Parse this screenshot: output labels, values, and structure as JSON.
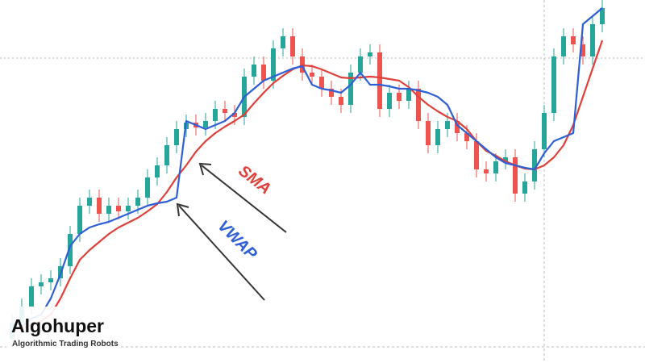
{
  "chart_data": {
    "type": "candlestick",
    "up_color": "#26a69a",
    "down_color": "#ef5350",
    "ylim": [
      0,
      450
    ],
    "open": [
      30,
      50,
      70,
      95,
      100,
      105,
      120,
      160,
      195,
      205,
      185,
      195,
      188,
      195,
      205,
      230,
      245,
      270,
      290,
      298,
      292,
      300,
      315,
      310,
      305,
      355,
      370,
      350,
      390,
      405,
      380,
      360,
      355,
      340,
      330,
      320,
      360,
      380,
      385,
      315,
      335,
      325,
      340,
      300,
      270,
      290,
      300,
      285,
      275,
      240,
      235,
      250,
      255,
      210,
      225,
      265,
      310,
      380,
      405,
      395,
      380,
      420
    ],
    "high": [
      60,
      80,
      105,
      110,
      115,
      130,
      170,
      205,
      215,
      215,
      205,
      205,
      205,
      215,
      240,
      255,
      280,
      300,
      308,
      308,
      310,
      325,
      325,
      320,
      365,
      380,
      380,
      400,
      415,
      415,
      390,
      370,
      365,
      350,
      340,
      370,
      390,
      395,
      395,
      345,
      345,
      350,
      350,
      310,
      300,
      310,
      310,
      295,
      285,
      250,
      260,
      265,
      265,
      235,
      275,
      320,
      390,
      415,
      415,
      405,
      430,
      450
    ],
    "low": [
      20,
      40,
      60,
      85,
      90,
      95,
      110,
      150,
      185,
      175,
      175,
      178,
      178,
      185,
      195,
      220,
      235,
      260,
      280,
      282,
      282,
      290,
      300,
      295,
      295,
      345,
      340,
      340,
      380,
      370,
      350,
      345,
      330,
      320,
      310,
      310,
      350,
      370,
      305,
      305,
      315,
      315,
      290,
      260,
      260,
      280,
      275,
      265,
      230,
      225,
      225,
      240,
      200,
      200,
      215,
      255,
      300,
      370,
      385,
      370,
      370,
      410
    ],
    "close": [
      50,
      70,
      95,
      100,
      105,
      120,
      160,
      195,
      205,
      185,
      195,
      188,
      195,
      205,
      230,
      245,
      270,
      290,
      298,
      292,
      300,
      315,
      310,
      305,
      355,
      370,
      350,
      390,
      405,
      380,
      360,
      355,
      340,
      330,
      320,
      360,
      380,
      385,
      315,
      335,
      325,
      340,
      300,
      270,
      290,
      300,
      285,
      275,
      240,
      235,
      250,
      255,
      210,
      225,
      265,
      310,
      380,
      405,
      395,
      380,
      420,
      440
    ],
    "series": [
      {
        "name": "SMA",
        "color": "#e0403a",
        "values": [
          40,
          43,
          47,
          52,
          60,
          80,
          105,
          128,
          140,
          150,
          160,
          168,
          174,
          180,
          188,
          197,
          212,
          230,
          245,
          262,
          275,
          285,
          293,
          300,
          308,
          322,
          335,
          347,
          356,
          364,
          369,
          368,
          364,
          359,
          354,
          353,
          354,
          355,
          354,
          352,
          350,
          342,
          330,
          320,
          312,
          305,
          300,
          290,
          275,
          263,
          257,
          250,
          245,
          241,
          240,
          245,
          255,
          270,
          295,
          330,
          365,
          400
        ]
      },
      {
        "name": "VWAP",
        "color": "#2f5fd6",
        "values": [
          40,
          45,
          55,
          60,
          80,
          110,
          145,
          160,
          168,
          172,
          175,
          180,
          185,
          190,
          195,
          198,
          200,
          205,
          300,
          295,
          290,
          295,
          300,
          310,
          330,
          340,
          350,
          355,
          360,
          365,
          368,
          345,
          340,
          338,
          335,
          345,
          360,
          345,
          345,
          343,
          340,
          340,
          338,
          335,
          330,
          320,
          295,
          285,
          275,
          265,
          255,
          248,
          245,
          242,
          240,
          260,
          275,
          280,
          285,
          420,
          430,
          440
        ]
      }
    ]
  },
  "brand": {
    "name": "Algohuper",
    "tagline": "Algorithmic Trading Robots"
  }
}
